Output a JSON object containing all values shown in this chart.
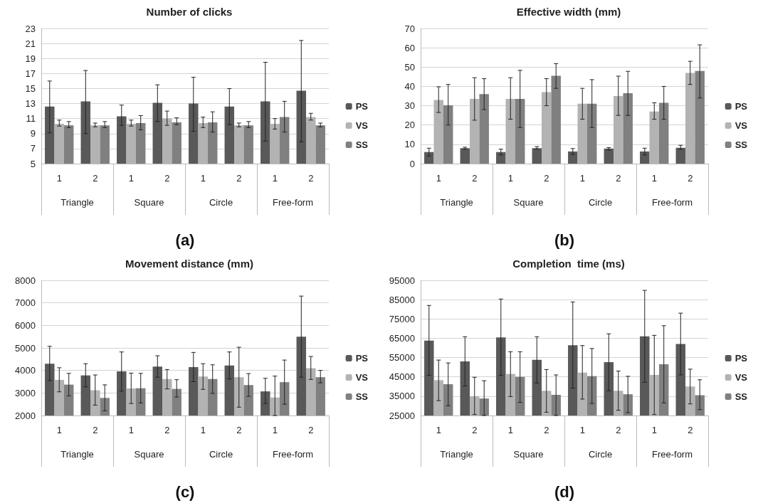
{
  "chart_data": [
    {
      "type": "bar",
      "title": "Number of clicks",
      "xlabel": "(a)",
      "categories": [
        "1",
        "2",
        "1",
        "2",
        "1",
        "2",
        "1",
        "2"
      ],
      "annotations": [
        "Triangle",
        "Square",
        "Circle",
        "Free-form"
      ],
      "ylim": [
        5,
        23
      ],
      "yticks": [
        5,
        7,
        9,
        11,
        13,
        15,
        17,
        19,
        21,
        23
      ],
      "grid": "y",
      "legend": "right",
      "series": [
        {
          "name": "PS",
          "color": "#595959",
          "values": [
            12.6,
            13.3,
            11.3,
            13.1,
            13.0,
            12.6,
            13.3,
            14.7
          ],
          "errors": [
            [
              9.1,
              16.0
            ],
            [
              9.0,
              17.4
            ],
            [
              10.1,
              12.8
            ],
            [
              10.6,
              15.5
            ],
            [
              9.3,
              16.5
            ],
            [
              10.2,
              15.0
            ],
            [
              8.0,
              18.5
            ],
            [
              7.9,
              21.4
            ]
          ]
        },
        {
          "name": "VS",
          "color": "#b3b3b3",
          "values": [
            10.3,
            10.1,
            10.3,
            11.0,
            10.4,
            10.1,
            10.3,
            11.2
          ],
          "errors": [
            [
              10.0,
              10.8
            ],
            [
              9.9,
              10.4
            ],
            [
              10.0,
              10.8
            ],
            [
              10.1,
              12.0
            ],
            [
              9.8,
              11.2
            ],
            [
              9.9,
              10.4
            ],
            [
              9.6,
              11.0
            ],
            [
              10.8,
              11.7
            ]
          ]
        },
        {
          "name": "SS",
          "color": "#808080",
          "values": [
            10.1,
            10.1,
            10.4,
            10.5,
            10.5,
            10.1,
            11.2,
            10.1
          ],
          "errors": [
            [
              9.8,
              10.6
            ],
            [
              9.8,
              10.6
            ],
            [
              9.5,
              11.4
            ],
            [
              10.2,
              11.1
            ],
            [
              9.2,
              11.9
            ],
            [
              9.8,
              10.6
            ],
            [
              9.2,
              13.3
            ],
            [
              9.9,
              10.4
            ]
          ]
        }
      ]
    },
    {
      "type": "bar",
      "title": "Effective width (mm)",
      "xlabel": "(b)",
      "categories": [
        "1",
        "2",
        "1",
        "2",
        "1",
        "2",
        "1",
        "2"
      ],
      "annotations": [
        "Triangle",
        "Square",
        "Circle",
        "Free-form"
      ],
      "ylim": [
        0,
        70
      ],
      "yticks": [
        0,
        10,
        20,
        30,
        40,
        50,
        60,
        70
      ],
      "grid": "y",
      "legend": "right",
      "series": [
        {
          "name": "PS",
          "color": "#595959",
          "values": [
            6.0,
            8.0,
            6.0,
            8.0,
            6.3,
            7.8,
            6.3,
            8.2
          ],
          "errors": [
            [
              4,
              8
            ],
            [
              7.5,
              8.5
            ],
            [
              4.5,
              7.5
            ],
            [
              7.5,
              8.8
            ],
            [
              4.8,
              7.8
            ],
            [
              7,
              8.3
            ],
            [
              4.5,
              8
            ],
            [
              7.5,
              9.5
            ]
          ]
        },
        {
          "name": "VS",
          "color": "#b3b3b3",
          "values": [
            33,
            33.5,
            33.5,
            37,
            31,
            35,
            27,
            47
          ],
          "errors": [
            [
              26.5,
              39.8
            ],
            [
              22.5,
              44.5
            ],
            [
              23,
              44.5
            ],
            [
              30,
              44
            ],
            [
              23,
              39
            ],
            [
              25,
              45.3
            ],
            [
              23,
              31.5
            ],
            [
              41,
              53
            ]
          ]
        },
        {
          "name": "SS",
          "color": "#808080",
          "values": [
            30.2,
            36,
            33.5,
            45.5,
            31,
            36.5,
            31.5,
            48
          ],
          "errors": [
            [
              20,
              41
            ],
            [
              28,
              44
            ],
            [
              18.7,
              48.3
            ],
            [
              39,
              51.8
            ],
            [
              18.7,
              43.5
            ],
            [
              25,
              47.8
            ],
            [
              23,
              40
            ],
            [
              34,
              61.5
            ]
          ]
        }
      ]
    },
    {
      "type": "bar",
      "title": "Movement distance (mm)",
      "xlabel": "(c)",
      "categories": [
        "1",
        "2",
        "1",
        "2",
        "1",
        "2",
        "1",
        "2"
      ],
      "annotations": [
        "Triangle",
        "Square",
        "Circle",
        "Free-form"
      ],
      "ylim": [
        2000,
        8000
      ],
      "yticks": [
        2000,
        3000,
        4000,
        5000,
        6000,
        7000,
        8000
      ],
      "grid": "y",
      "legend": "right",
      "series": [
        {
          "name": "PS",
          "color": "#595959",
          "values": [
            4300,
            3780,
            3960,
            4170,
            4150,
            4220,
            3070,
            5500
          ],
          "errors": [
            [
              3550,
              5070
            ],
            [
              3270,
              4300
            ],
            [
              3080,
              4820
            ],
            [
              3700,
              4650
            ],
            [
              3500,
              4800
            ],
            [
              3620,
              4820
            ],
            [
              2530,
              3650
            ],
            [
              3700,
              7300
            ]
          ]
        },
        {
          "name": "VS",
          "color": "#b3b3b3",
          "values": [
            3580,
            3120,
            3200,
            3620,
            3730,
            3700,
            2800,
            4100
          ],
          "errors": [
            [
              3050,
              4120
            ],
            [
              2460,
              3800
            ],
            [
              2530,
              3880
            ],
            [
              3180,
              4040
            ],
            [
              3160,
              4300
            ],
            [
              2370,
              5030
            ],
            [
              2000,
              3750
            ],
            [
              3600,
              4620
            ]
          ]
        },
        {
          "name": "SS",
          "color": "#808080",
          "values": [
            3370,
            2780,
            3210,
            3180,
            3620,
            3350,
            3480,
            3700
          ],
          "errors": [
            [
              2870,
              3870
            ],
            [
              2210,
              3360
            ],
            [
              2560,
              3870
            ],
            [
              2820,
              3590
            ],
            [
              2980,
              4250
            ],
            [
              2850,
              3860
            ],
            [
              2500,
              4460
            ],
            [
              3450,
              4000
            ]
          ]
        }
      ]
    },
    {
      "type": "bar",
      "title": "Completion  time (ms)",
      "xlabel": "(d)",
      "categories": [
        "1",
        "2",
        "1",
        "2",
        "1",
        "2",
        "1",
        "2"
      ],
      "annotations": [
        "Triangle",
        "Square",
        "Circle",
        "Free-form"
      ],
      "ylim": [
        25000,
        95000
      ],
      "yticks": [
        25000,
        35000,
        45000,
        55000,
        65000,
        75000,
        85000,
        95000
      ],
      "grid": "y",
      "legend": "right",
      "series": [
        {
          "name": "PS",
          "color": "#595959",
          "values": [
            63800,
            53000,
            65400,
            53800,
            61400,
            52600,
            66000,
            62000
          ],
          "errors": [
            [
              45800,
              82000
            ],
            [
              40300,
              65800
            ],
            [
              45800,
              85300
            ],
            [
              41800,
              65800
            ],
            [
              39200,
              83800
            ],
            [
              37800,
              67300
            ],
            [
              42200,
              89800
            ],
            [
              46000,
              78000
            ]
          ]
        },
        {
          "name": "VS",
          "color": "#b3b3b3",
          "values": [
            43300,
            35000,
            46500,
            37800,
            47200,
            37800,
            46000,
            40000
          ],
          "errors": [
            [
              32700,
              53700
            ],
            [
              25500,
              44800
            ],
            [
              34800,
              58000
            ],
            [
              26700,
              48800
            ],
            [
              33500,
              61200
            ],
            [
              27700,
              48000
            ],
            [
              25500,
              66500
            ],
            [
              31000,
              49000
            ]
          ]
        },
        {
          "name": "SS",
          "color": "#808080",
          "values": [
            41200,
            33800,
            45000,
            35700,
            45400,
            36000,
            51500,
            35500
          ],
          "errors": [
            [
              30000,
              52200
            ],
            [
              25000,
              43000
            ],
            [
              31800,
              58000
            ],
            [
              25000,
              46000
            ],
            [
              31200,
              59700
            ],
            [
              26500,
              45300
            ],
            [
              31500,
              71500
            ],
            [
              28000,
              43500
            ]
          ]
        }
      ]
    }
  ]
}
